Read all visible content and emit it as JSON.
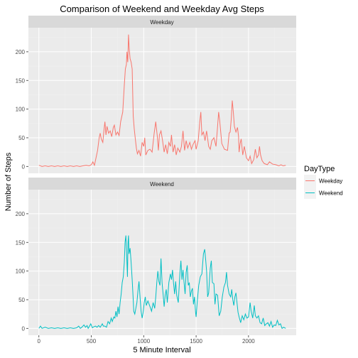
{
  "chart_data": {
    "type": "line",
    "title": "Comparison of Weekend and Weekday Avg Steps",
    "xlabel": "5 Minute Interval",
    "ylabel": "Number of Steps",
    "xlim": [
      -100,
      2455
    ],
    "ylim": [
      -12,
      242
    ],
    "x_ticks": [
      0,
      500,
      1000,
      1500,
      2000
    ],
    "y_ticks": [
      0,
      50,
      100,
      150,
      200
    ],
    "grid": true,
    "legend_position": "right",
    "legend_title": "DayType",
    "facets": [
      "Weekday",
      "Weekend"
    ],
    "series": [
      {
        "name": "Weekday",
        "color": "#F8766D",
        "points": [
          [
            0,
            2
          ],
          [
            30,
            0
          ],
          [
            60,
            1
          ],
          [
            90,
            0
          ],
          [
            120,
            1
          ],
          [
            150,
            0
          ],
          [
            180,
            1
          ],
          [
            210,
            0
          ],
          [
            240,
            1
          ],
          [
            270,
            0
          ],
          [
            300,
            1
          ],
          [
            330,
            0
          ],
          [
            360,
            1
          ],
          [
            390,
            0
          ],
          [
            420,
            1
          ],
          [
            450,
            2
          ],
          [
            480,
            1
          ],
          [
            500,
            3
          ],
          [
            515,
            8
          ],
          [
            530,
            2
          ],
          [
            545,
            15
          ],
          [
            560,
            28
          ],
          [
            575,
            50
          ],
          [
            585,
            58
          ],
          [
            595,
            48
          ],
          [
            610,
            42
          ],
          [
            620,
            62
          ],
          [
            630,
            78
          ],
          [
            640,
            55
          ],
          [
            650,
            70
          ],
          [
            665,
            58
          ],
          [
            680,
            62
          ],
          [
            695,
            52
          ],
          [
            710,
            68
          ],
          [
            720,
            72
          ],
          [
            735,
            55
          ],
          [
            750,
            60
          ],
          [
            765,
            54
          ],
          [
            780,
            78
          ],
          [
            800,
            95
          ],
          [
            815,
            142
          ],
          [
            825,
            170
          ],
          [
            835,
            178
          ],
          [
            840,
            200
          ],
          [
            848,
            182
          ],
          [
            855,
            230
          ],
          [
            862,
            205
          ],
          [
            870,
            188
          ],
          [
            880,
            182
          ],
          [
            890,
            170
          ],
          [
            900,
            88
          ],
          [
            910,
            65
          ],
          [
            920,
            48
          ],
          [
            930,
            32
          ],
          [
            940,
            22
          ],
          [
            955,
            28
          ],
          [
            970,
            18
          ],
          [
            985,
            42
          ],
          [
            1000,
            35
          ],
          [
            1010,
            50
          ],
          [
            1020,
            20
          ],
          [
            1040,
            28
          ],
          [
            1060,
            30
          ],
          [
            1080,
            25
          ],
          [
            1100,
            58
          ],
          [
            1115,
            78
          ],
          [
            1130,
            52
          ],
          [
            1140,
            28
          ],
          [
            1150,
            55
          ],
          [
            1165,
            62
          ],
          [
            1180,
            45
          ],
          [
            1195,
            25
          ],
          [
            1210,
            38
          ],
          [
            1225,
            22
          ],
          [
            1240,
            42
          ],
          [
            1255,
            35
          ],
          [
            1265,
            55
          ],
          [
            1280,
            25
          ],
          [
            1295,
            38
          ],
          [
            1310,
            20
          ],
          [
            1325,
            32
          ],
          [
            1345,
            25
          ],
          [
            1360,
            35
          ],
          [
            1375,
            62
          ],
          [
            1390,
            28
          ],
          [
            1405,
            45
          ],
          [
            1420,
            32
          ],
          [
            1440,
            42
          ],
          [
            1455,
            30
          ],
          [
            1470,
            38
          ],
          [
            1490,
            45
          ],
          [
            1500,
            30
          ],
          [
            1520,
            45
          ],
          [
            1535,
            78
          ],
          [
            1545,
            95
          ],
          [
            1555,
            55
          ],
          [
            1570,
            60
          ],
          [
            1585,
            45
          ],
          [
            1600,
            62
          ],
          [
            1620,
            35
          ],
          [
            1635,
            30
          ],
          [
            1650,
            45
          ],
          [
            1670,
            50
          ],
          [
            1690,
            35
          ],
          [
            1705,
            70
          ],
          [
            1715,
            95
          ],
          [
            1725,
            80
          ],
          [
            1745,
            40
          ],
          [
            1770,
            30
          ],
          [
            1800,
            28
          ],
          [
            1815,
            58
          ],
          [
            1825,
            60
          ],
          [
            1835,
            82
          ],
          [
            1845,
            115
          ],
          [
            1855,
            95
          ],
          [
            1865,
            70
          ],
          [
            1880,
            60
          ],
          [
            1895,
            68
          ],
          [
            1905,
            52
          ],
          [
            1910,
            25
          ],
          [
            1920,
            40
          ],
          [
            1930,
            48
          ],
          [
            1945,
            20
          ],
          [
            1960,
            35
          ],
          [
            1980,
            15
          ],
          [
            2000,
            10
          ],
          [
            2015,
            18
          ],
          [
            2030,
            5
          ],
          [
            2050,
            12
          ],
          [
            2065,
            30
          ],
          [
            2080,
            15
          ],
          [
            2095,
            20
          ],
          [
            2105,
            35
          ],
          [
            2115,
            20
          ],
          [
            2130,
            10
          ],
          [
            2150,
            5
          ],
          [
            2180,
            3
          ],
          [
            2200,
            8
          ],
          [
            2230,
            4
          ],
          [
            2260,
            3
          ],
          [
            2290,
            1
          ],
          [
            2310,
            3
          ],
          [
            2330,
            1
          ],
          [
            2355,
            2
          ]
        ]
      },
      {
        "name": "Weekend",
        "color": "#00BFC4",
        "points": [
          [
            0,
            0
          ],
          [
            15,
            4
          ],
          [
            30,
            0
          ],
          [
            60,
            2
          ],
          [
            90,
            0
          ],
          [
            120,
            1
          ],
          [
            150,
            0
          ],
          [
            180,
            1
          ],
          [
            210,
            0
          ],
          [
            240,
            1
          ],
          [
            270,
            0
          ],
          [
            300,
            1
          ],
          [
            330,
            0
          ],
          [
            360,
            1
          ],
          [
            380,
            4
          ],
          [
            395,
            0
          ],
          [
            410,
            2
          ],
          [
            430,
            6
          ],
          [
            445,
            2
          ],
          [
            460,
            5
          ],
          [
            470,
            0
          ],
          [
            480,
            3
          ],
          [
            495,
            8
          ],
          [
            510,
            1
          ],
          [
            525,
            3
          ],
          [
            540,
            4
          ],
          [
            555,
            2
          ],
          [
            570,
            5
          ],
          [
            585,
            2
          ],
          [
            605,
            8
          ],
          [
            615,
            4
          ],
          [
            630,
            4
          ],
          [
            645,
            2
          ],
          [
            660,
            12
          ],
          [
            675,
            8
          ],
          [
            690,
            18
          ],
          [
            700,
            12
          ],
          [
            715,
            20
          ],
          [
            725,
            18
          ],
          [
            735,
            30
          ],
          [
            745,
            20
          ],
          [
            755,
            38
          ],
          [
            765,
            25
          ],
          [
            775,
            45
          ],
          [
            785,
            60
          ],
          [
            795,
            80
          ],
          [
            805,
            90
          ],
          [
            815,
            115
          ],
          [
            822,
            150
          ],
          [
            830,
            162
          ],
          [
            838,
            125
          ],
          [
            845,
            90
          ],
          [
            850,
            150
          ],
          [
            855,
            162
          ],
          [
            860,
            130
          ],
          [
            870,
            140
          ],
          [
            880,
            115
          ],
          [
            890,
            85
          ],
          [
            900,
            50
          ],
          [
            905,
            30
          ],
          [
            915,
            25
          ],
          [
            925,
            35
          ],
          [
            935,
            45
          ],
          [
            945,
            65
          ],
          [
            955,
            82
          ],
          [
            965,
            55
          ],
          [
            975,
            30
          ],
          [
            985,
            18
          ],
          [
            995,
            28
          ],
          [
            1005,
            45
          ],
          [
            1015,
            55
          ],
          [
            1025,
            40
          ],
          [
            1040,
            48
          ],
          [
            1060,
            38
          ],
          [
            1075,
            30
          ],
          [
            1090,
            45
          ],
          [
            1105,
            35
          ],
          [
            1115,
            55
          ],
          [
            1125,
            80
          ],
          [
            1135,
            100
          ],
          [
            1145,
            82
          ],
          [
            1155,
            75
          ],
          [
            1165,
            122
          ],
          [
            1175,
            80
          ],
          [
            1185,
            60
          ],
          [
            1195,
            38
          ],
          [
            1205,
            58
          ],
          [
            1215,
            68
          ],
          [
            1225,
            45
          ],
          [
            1240,
            80
          ],
          [
            1255,
            95
          ],
          [
            1265,
            85
          ],
          [
            1275,
            102
          ],
          [
            1285,
            78
          ],
          [
            1295,
            60
          ],
          [
            1305,
            82
          ],
          [
            1315,
            58
          ],
          [
            1330,
            45
          ],
          [
            1345,
            95
          ],
          [
            1355,
            118
          ],
          [
            1365,
            85
          ],
          [
            1375,
            102
          ],
          [
            1385,
            80
          ],
          [
            1395,
            60
          ],
          [
            1405,
            98
          ],
          [
            1415,
            110
          ],
          [
            1425,
            75
          ],
          [
            1435,
            80
          ],
          [
            1445,
            55
          ],
          [
            1455,
            65
          ],
          [
            1465,
            70
          ],
          [
            1475,
            42
          ],
          [
            1485,
            55
          ],
          [
            1495,
            28
          ],
          [
            1500,
            20
          ],
          [
            1510,
            45
          ],
          [
            1525,
            75
          ],
          [
            1540,
            90
          ],
          [
            1555,
            95
          ],
          [
            1570,
            130
          ],
          [
            1582,
            138
          ],
          [
            1592,
            118
          ],
          [
            1600,
            100
          ],
          [
            1610,
            55
          ],
          [
            1620,
            62
          ],
          [
            1635,
            105
          ],
          [
            1645,
            118
          ],
          [
            1655,
            80
          ],
          [
            1670,
            78
          ],
          [
            1680,
            42
          ],
          [
            1690,
            60
          ],
          [
            1705,
            58
          ],
          [
            1720,
            22
          ],
          [
            1735,
            30
          ],
          [
            1750,
            55
          ],
          [
            1765,
            72
          ],
          [
            1780,
            80
          ],
          [
            1790,
            98
          ],
          [
            1800,
            75
          ],
          [
            1815,
            60
          ],
          [
            1830,
            55
          ],
          [
            1840,
            68
          ],
          [
            1850,
            50
          ],
          [
            1860,
            40
          ],
          [
            1870,
            55
          ],
          [
            1880,
            62
          ],
          [
            1890,
            45
          ],
          [
            1900,
            28
          ],
          [
            1910,
            20
          ],
          [
            1925,
            10
          ],
          [
            1940,
            22
          ],
          [
            1955,
            15
          ],
          [
            1970,
            25
          ],
          [
            1985,
            18
          ],
          [
            2000,
            20
          ],
          [
            2015,
            45
          ],
          [
            2025,
            30
          ],
          [
            2040,
            18
          ],
          [
            2055,
            40
          ],
          [
            2065,
            22
          ],
          [
            2080,
            18
          ],
          [
            2095,
            22
          ],
          [
            2110,
            10
          ],
          [
            2125,
            8
          ],
          [
            2140,
            18
          ],
          [
            2155,
            5
          ],
          [
            2170,
            8
          ],
          [
            2185,
            10
          ],
          [
            2200,
            4
          ],
          [
            2215,
            12
          ],
          [
            2230,
            2
          ],
          [
            2245,
            6
          ],
          [
            2260,
            5
          ],
          [
            2275,
            14
          ],
          [
            2290,
            6
          ],
          [
            2305,
            8
          ],
          [
            2320,
            0
          ],
          [
            2335,
            2
          ],
          [
            2355,
            0
          ]
        ]
      }
    ]
  }
}
